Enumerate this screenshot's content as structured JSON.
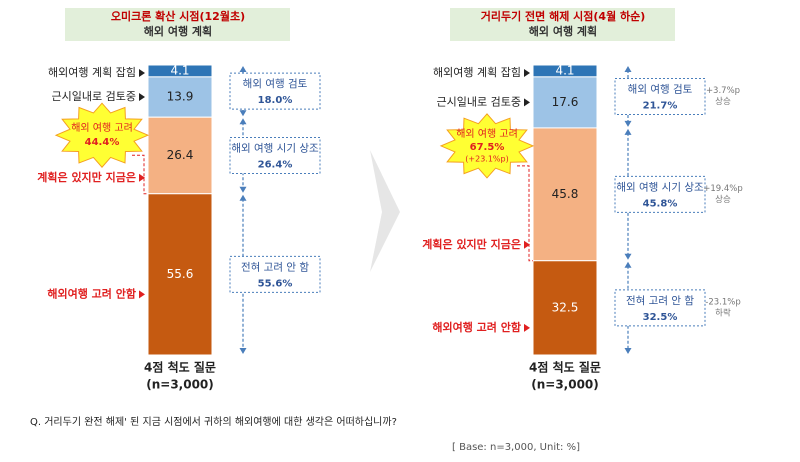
{
  "chart_data": [
    {
      "type": "bar",
      "stacked": true,
      "title": "오미크론 확산 시점(12월초)",
      "subtitle": "해외 여행 계획",
      "categories": [
        "해외여행 계획 잡힘",
        "근시일내로 검토중",
        "계획은 있지만 지금은",
        "해외여행 고려 안함"
      ],
      "values": [
        4.1,
        13.9,
        26.4,
        55.6
      ],
      "colors": [
        "#2e75b6",
        "#9dc3e6",
        "#f4b183",
        "#c55a11"
      ],
      "ylim": [
        0,
        100
      ],
      "xlabel": "4점 척도 질문",
      "note": "(n=3,000)",
      "highlight": {
        "label": "해외 여행 고려",
        "share": "44.4%"
      },
      "groups": [
        {
          "name": "해외 여행 검토",
          "share": "18.0%"
        },
        {
          "name": "해외 여행 시기 상조",
          "share": "26.4%"
        },
        {
          "name": "전혀 고려 안 함",
          "share": "55.6%"
        }
      ]
    },
    {
      "type": "bar",
      "stacked": true,
      "title": "거리두기 전면 해제 시점(4월 하순)",
      "subtitle": "해외 여행 계획",
      "categories": [
        "해외여행 계획 잡힘",
        "근시일내로 검토중",
        "계획은 있지만 지금은",
        "해외여행 고려 안함"
      ],
      "values": [
        4.1,
        17.6,
        45.8,
        32.5
      ],
      "colors": [
        "#2e75b6",
        "#9dc3e6",
        "#f4b183",
        "#c55a11"
      ],
      "ylim": [
        0,
        100
      ],
      "xlabel": "4점 척도 질문",
      "note": "(n=3,000)",
      "highlight": {
        "label": "해외 여행 고려",
        "share": "67.5%",
        "change": "(+23.1%p)"
      },
      "groups": [
        {
          "name": "해외 여행 검토",
          "share": "21.7%",
          "change": "+3.7%p",
          "direction": "상승"
        },
        {
          "name": "해외 여행 시기 상조",
          "share": "45.8%",
          "change": "+19.4%p",
          "direction": "상승"
        },
        {
          "name": "전혀 고려 안 함",
          "share": "32.5%",
          "change": "-23.1%p",
          "direction": "하락"
        }
      ]
    }
  ],
  "footer": {
    "question": "Q. 거리두기 완전 해제' 된 지금 시점에서 귀하의 해외여행에 대한 생각은 어떠하십니까?",
    "base": "[ Base:  n=3,000, Unit: %]"
  }
}
